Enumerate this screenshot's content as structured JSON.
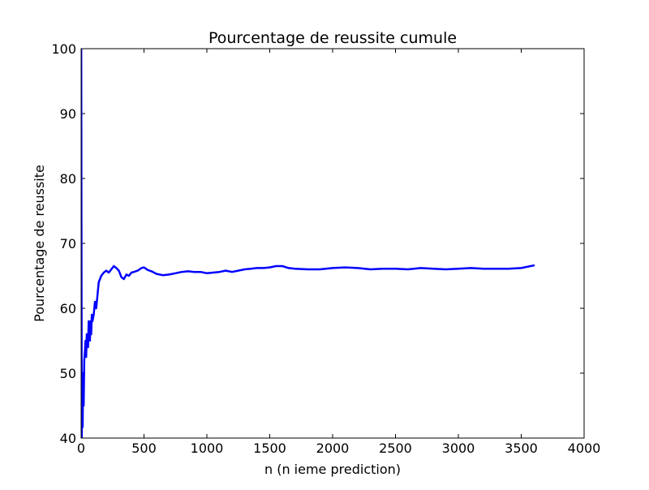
{
  "chart_data": {
    "type": "line",
    "title": "Pourcentage de reussite cumule",
    "xlabel": "n (n ieme prediction)",
    "ylabel": "Pourcentage de reussite",
    "xlim": [
      0,
      4000
    ],
    "ylim": [
      40,
      100
    ],
    "x_ticks": [
      "0",
      "500",
      "1000",
      "1500",
      "2000",
      "2500",
      "3000",
      "3500",
      "4000"
    ],
    "y_ticks": [
      "40",
      "50",
      "60",
      "70",
      "80",
      "90",
      "100"
    ],
    "grid": false,
    "legend": "none",
    "series": [
      {
        "color": "#0000ff",
        "x": [
          1,
          3,
          5,
          8,
          12,
          16,
          20,
          25,
          30,
          35,
          40,
          45,
          50,
          55,
          60,
          65,
          70,
          75,
          80,
          85,
          90,
          100,
          110,
          120,
          130,
          140,
          150,
          160,
          180,
          200,
          220,
          240,
          260,
          280,
          300,
          320,
          340,
          360,
          380,
          400,
          420,
          450,
          480,
          500,
          530,
          560,
          600,
          650,
          700,
          750,
          800,
          850,
          900,
          950,
          1000,
          1050,
          1100,
          1150,
          1200,
          1250,
          1300,
          1350,
          1400,
          1450,
          1500,
          1550,
          1600,
          1650,
          1700,
          1800,
          1900,
          2000,
          2100,
          2200,
          2300,
          2400,
          2500,
          2600,
          2700,
          2800,
          2900,
          3000,
          3100,
          3200,
          3300,
          3400,
          3500,
          3600
        ],
        "y": [
          100,
          66.7,
          40,
          50,
          41.7,
          50,
          45,
          52,
          53.3,
          55,
          52.5,
          56,
          55,
          54,
          58,
          57,
          55,
          58,
          56,
          59,
          58,
          59,
          61,
          60,
          62,
          64,
          64.5,
          65,
          65.5,
          65.8,
          65.5,
          66,
          66.5,
          66.2,
          65.8,
          64.8,
          64.5,
          65.2,
          65,
          65.5,
          65.6,
          65.8,
          66.2,
          66.3,
          65.9,
          65.7,
          65.3,
          65.1,
          65.2,
          65.4,
          65.6,
          65.7,
          65.6,
          65.6,
          65.4,
          65.5,
          65.6,
          65.8,
          65.6,
          65.8,
          66,
          66.1,
          66.2,
          66.2,
          66.3,
          66.5,
          66.5,
          66.2,
          66.1,
          66,
          66,
          66.2,
          66.3,
          66.2,
          66,
          66.1,
          66.1,
          66,
          66.2,
          66.1,
          66,
          66.1,
          66.2,
          66.1,
          66.1,
          66.1,
          66.2,
          66.6
        ]
      }
    ]
  }
}
